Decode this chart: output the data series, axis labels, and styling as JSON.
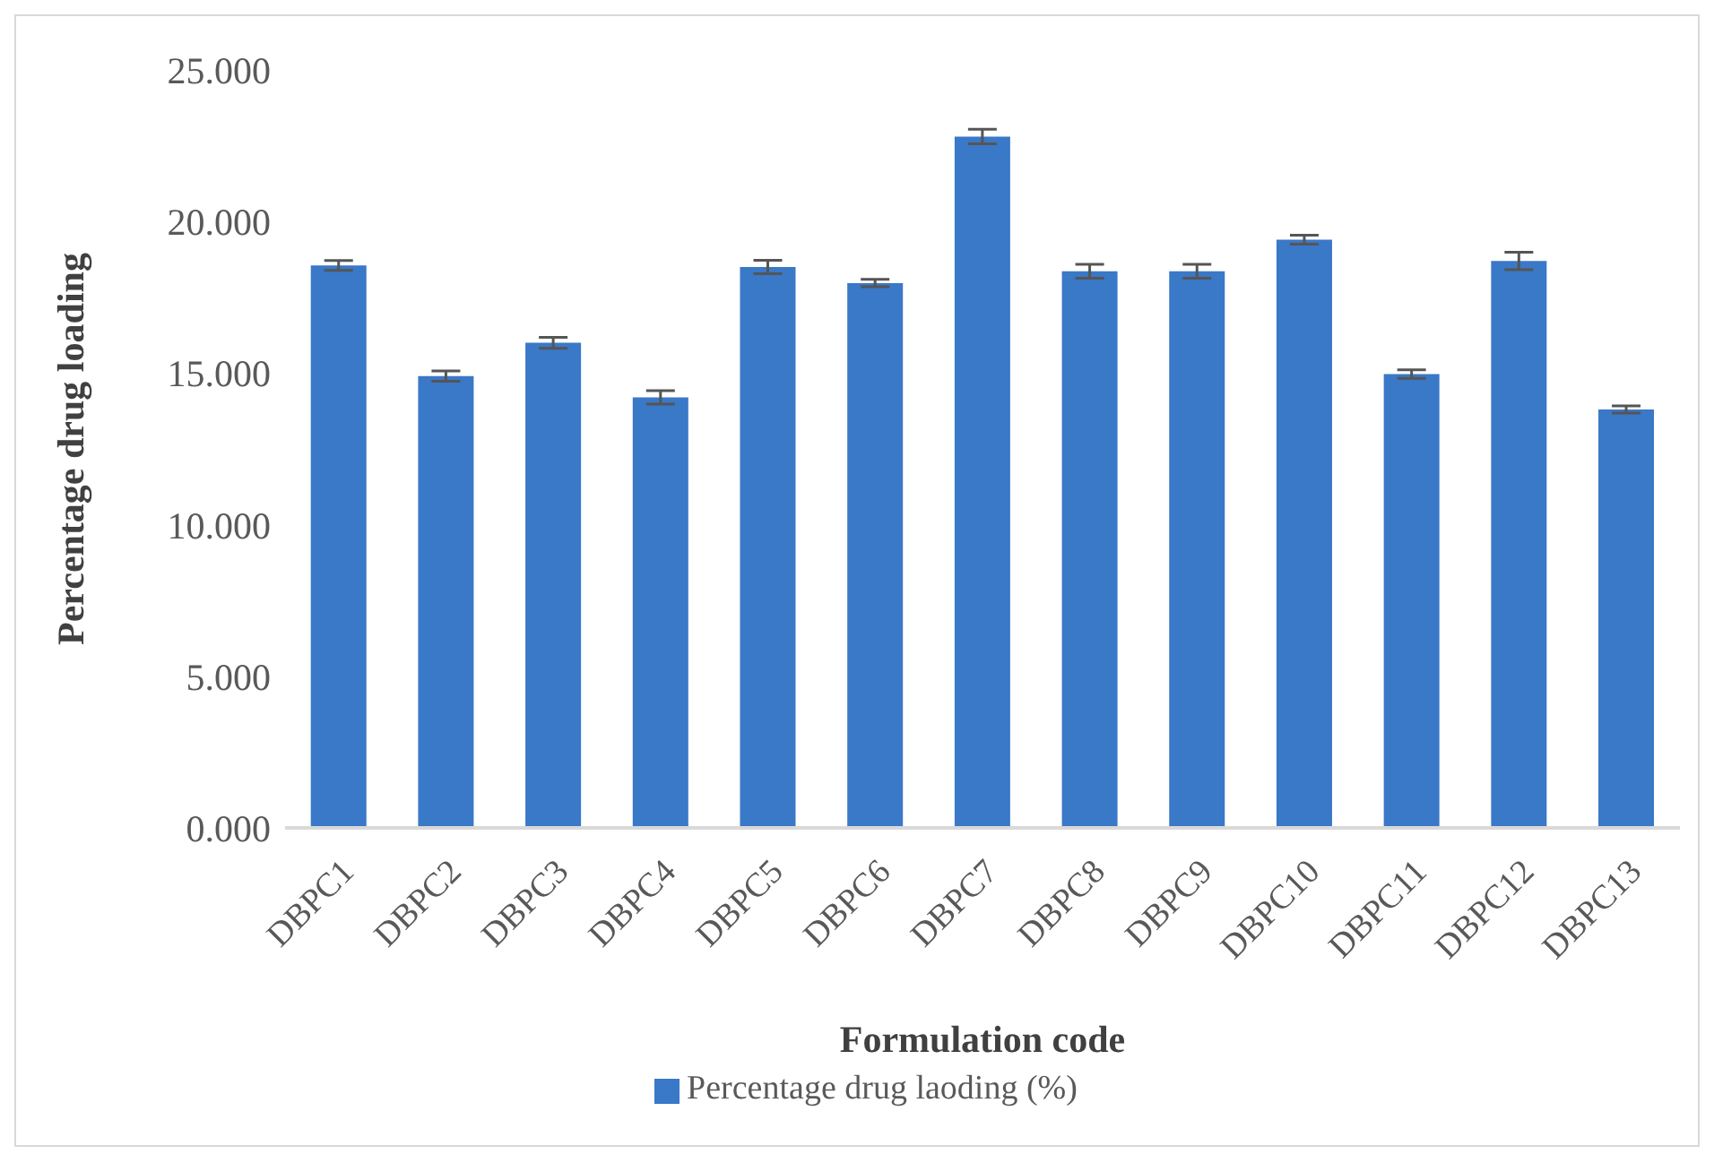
{
  "chart_data": {
    "type": "bar",
    "xlabel": "Formulation code",
    "ylabel": "Percentage drug loading",
    "categories": [
      "DBPC1",
      "DBPC2",
      "DBPC3",
      "DBPC4",
      "DBPC5",
      "DBPC6",
      "DBPC7",
      "DBPC8",
      "DBPC9",
      "DBPC10",
      "DBPC11",
      "DBPC12",
      "DBPC13"
    ],
    "series": [
      {
        "name": "Percentage drug laoding (%)",
        "color": "#3a78c8",
        "values": [
          18.55,
          14.9,
          16.0,
          14.2,
          18.5,
          17.97,
          22.8,
          18.36,
          18.36,
          19.4,
          14.97,
          18.7,
          13.8
        ],
        "errors": [
          0.16,
          0.17,
          0.18,
          0.22,
          0.22,
          0.12,
          0.24,
          0.23,
          0.23,
          0.15,
          0.14,
          0.29,
          0.12
        ]
      }
    ],
    "ylim": [
      0,
      25
    ],
    "yticks": [
      {
        "value": 0,
        "label": "0.000"
      },
      {
        "value": 5,
        "label": "5.000"
      },
      {
        "value": 10,
        "label": "10.000"
      },
      {
        "value": 15,
        "label": "15.000"
      },
      {
        "value": 20,
        "label": "20.000"
      },
      {
        "value": 25,
        "label": "25.000"
      }
    ],
    "grid": false,
    "legend": "bottom"
  }
}
